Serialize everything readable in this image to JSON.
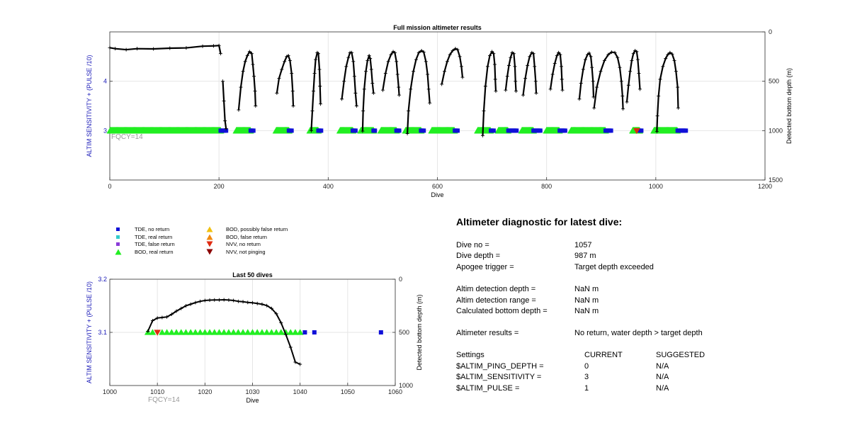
{
  "colors": {
    "trace": "#000000",
    "tde_no_return": "#1010d8",
    "tde_real_return": "#33cccc",
    "tde_false_return": "#8a3cd8",
    "bod_real_return": "#22ee22",
    "bod_possibly_false": "#f0c010",
    "bod_false_return": "#f08a10",
    "nvv_no_return": "#e02a10",
    "nvv_not_pinging": "#8b0000",
    "left_axis_label": "#1a1ab8",
    "fqcy_text": "#9a9a9a",
    "grid": "#e6e6e6"
  },
  "legend": [
    {
      "marker": "square",
      "color_key": "tde_no_return",
      "label": "TDE, no return"
    },
    {
      "marker": "square",
      "color_key": "tde_real_return",
      "label": "TDE, real return"
    },
    {
      "marker": "square",
      "color_key": "tde_false_return",
      "label": "TDE, false return"
    },
    {
      "marker": "triangle-up",
      "color_key": "bod_real_return",
      "label": "BOD, real return"
    },
    {
      "marker": "triangle-up",
      "color_key": "bod_possibly_false",
      "label": "BOD, possibly false return"
    },
    {
      "marker": "triangle-up",
      "color_key": "bod_false_return",
      "label": "BOD, false return"
    },
    {
      "marker": "triangle-down",
      "color_key": "nvv_no_return",
      "label": "NVV, no return"
    },
    {
      "marker": "triangle-down",
      "color_key": "nvv_not_pinging",
      "label": "NVV, not pinging"
    }
  ],
  "chart_data": [
    {
      "type": "scatter",
      "title": "Full mission altimeter results",
      "xlabel": "Dive",
      "ylabel": "ALTIM SENSITIVITY + (PULSE /10)",
      "y2label": "Detected bottom depth (m)",
      "xlim": [
        0,
        1200
      ],
      "ylim": [
        2,
        5
      ],
      "y2lim": [
        1500,
        0
      ],
      "xticks": [
        0,
        200,
        400,
        600,
        800,
        1000,
        1200
      ],
      "yticks": [
        3,
        4
      ],
      "y2ticks": [
        0,
        500,
        1000,
        1500
      ],
      "grid": true,
      "annotation": "FQCY=14",
      "setting_series": {
        "value": 3,
        "bod_real_return_segments": [
          [
            1,
            203
          ],
          [
            232,
            258
          ],
          [
            305,
            328
          ],
          [
            367,
            382
          ],
          [
            422,
            445
          ],
          [
            460,
            483
          ],
          [
            497,
            525
          ],
          [
            542,
            570
          ],
          [
            590,
            632
          ],
          [
            674,
            698
          ],
          [
            712,
            730
          ],
          [
            755,
            776
          ],
          [
            800,
            824
          ],
          [
            845,
            908
          ],
          [
            958,
            971
          ],
          [
            997,
            1040
          ]
        ],
        "tde_no_return_segments": [
          [
            203,
            215
          ],
          [
            258,
            265
          ],
          [
            328,
            333
          ],
          [
            382,
            388
          ],
          [
            445,
            450
          ],
          [
            483,
            487
          ],
          [
            525,
            530
          ],
          [
            570,
            576
          ],
          [
            632,
            638
          ],
          [
            698,
            705
          ],
          [
            730,
            745
          ],
          [
            776,
            790
          ],
          [
            824,
            835
          ],
          [
            908,
            918
          ],
          [
            971,
            975
          ],
          [
            1040,
            1057
          ]
        ],
        "nvv_no_return_dives": [
          965
        ]
      },
      "bottom_depth_segments": [
        [
          [
            0,
            160
          ],
          [
            10,
            170
          ],
          [
            30,
            180
          ],
          [
            50,
            170
          ],
          [
            80,
            172
          ],
          [
            110,
            165
          ],
          [
            140,
            162
          ],
          [
            170,
            145
          ],
          [
            190,
            142
          ],
          [
            200,
            138
          ],
          [
            203,
            220
          ]
        ],
        [
          [
            207,
            500
          ],
          [
            209,
            700
          ],
          [
            211,
            900
          ],
          [
            213,
            980
          ]
        ],
        [
          [
            236,
            790
          ],
          [
            240,
            560
          ],
          [
            244,
            400
          ],
          [
            248,
            300
          ],
          [
            252,
            240
          ],
          [
            256,
            200
          ],
          [
            260,
            220
          ],
          [
            262,
            330
          ],
          [
            264,
            450
          ],
          [
            266,
            600
          ],
          [
            267,
            750
          ]
        ],
        [
          [
            306,
            620
          ],
          [
            310,
            470
          ],
          [
            315,
            380
          ],
          [
            320,
            300
          ],
          [
            324,
            250
          ],
          [
            327,
            240
          ],
          [
            330,
            290
          ],
          [
            333,
            420
          ],
          [
            335,
            600
          ],
          [
            336,
            750
          ]
        ],
        [
          [
            369,
            1000
          ],
          [
            371,
            800
          ],
          [
            373,
            600
          ],
          [
            375,
            420
          ],
          [
            377,
            280
          ],
          [
            380,
            210
          ],
          [
            382,
            220
          ],
          [
            384,
            380
          ],
          [
            385,
            550
          ],
          [
            386,
            730
          ]
        ],
        [
          [
            425,
            680
          ],
          [
            429,
            500
          ],
          [
            433,
            350
          ],
          [
            437,
            260
          ],
          [
            440,
            210
          ],
          [
            443,
            210
          ],
          [
            446,
            300
          ],
          [
            448,
            450
          ],
          [
            450,
            620
          ],
          [
            452,
            750
          ]
        ],
        [
          [
            463,
            1005
          ],
          [
            464,
            800
          ],
          [
            466,
            580
          ],
          [
            469,
            400
          ],
          [
            472,
            290
          ],
          [
            475,
            240
          ],
          [
            477,
            270
          ],
          [
            479,
            380
          ],
          [
            481,
            520
          ],
          [
            483,
            620
          ]
        ],
        [
          [
            500,
            590
          ],
          [
            505,
            420
          ],
          [
            510,
            300
          ],
          [
            515,
            230
          ],
          [
            519,
            200
          ],
          [
            522,
            210
          ],
          [
            525,
            300
          ],
          [
            527,
            430
          ],
          [
            529,
            560
          ],
          [
            530,
            640
          ]
        ],
        [
          [
            545,
            1030
          ],
          [
            547,
            800
          ],
          [
            551,
            580
          ],
          [
            556,
            400
          ],
          [
            561,
            280
          ],
          [
            566,
            210
          ],
          [
            571,
            190
          ],
          [
            575,
            205
          ],
          [
            579,
            300
          ],
          [
            582,
            430
          ],
          [
            584,
            580
          ],
          [
            586,
            720
          ]
        ],
        [
          [
            608,
            530
          ],
          [
            613,
            400
          ],
          [
            618,
            300
          ],
          [
            623,
            230
          ],
          [
            628,
            190
          ],
          [
            633,
            170
          ],
          [
            637,
            180
          ],
          [
            641,
            250
          ],
          [
            644,
            350
          ],
          [
            646,
            460
          ]
        ],
        [
          [
            683,
            1050
          ],
          [
            685,
            800
          ],
          [
            688,
            550
          ],
          [
            692,
            350
          ],
          [
            696,
            240
          ],
          [
            700,
            200
          ],
          [
            703,
            220
          ],
          [
            705,
            330
          ],
          [
            706,
            480
          ],
          [
            707,
            600
          ]
        ],
        [
          [
            725,
            590
          ],
          [
            728,
            450
          ],
          [
            731,
            340
          ],
          [
            734,
            260
          ],
          [
            737,
            210
          ],
          [
            740,
            220
          ],
          [
            742,
            350
          ],
          [
            743,
            500
          ],
          [
            744,
            600
          ]
        ],
        [
          [
            757,
            640
          ],
          [
            761,
            470
          ],
          [
            765,
            340
          ],
          [
            769,
            250
          ],
          [
            773,
            210
          ],
          [
            776,
            220
          ],
          [
            778,
            350
          ],
          [
            780,
            500
          ],
          [
            781,
            620
          ]
        ],
        [
          [
            807,
            580
          ],
          [
            811,
            430
          ],
          [
            815,
            320
          ],
          [
            819,
            240
          ],
          [
            822,
            210
          ],
          [
            825,
            230
          ],
          [
            827,
            350
          ],
          [
            828,
            480
          ],
          [
            829,
            590
          ]
        ],
        [
          [
            860,
            680
          ],
          [
            863,
            520
          ],
          [
            867,
            380
          ],
          [
            871,
            280
          ],
          [
            875,
            230
          ],
          [
            878,
            215
          ],
          [
            881,
            250
          ],
          [
            883,
            360
          ],
          [
            885,
            500
          ],
          [
            886,
            660
          ]
        ],
        [
          [
            887,
            770
          ],
          [
            892,
            560
          ],
          [
            899,
            400
          ],
          [
            906,
            290
          ],
          [
            913,
            230
          ],
          [
            919,
            205
          ],
          [
            925,
            210
          ],
          [
            930,
            260
          ],
          [
            934,
            360
          ],
          [
            937,
            500
          ],
          [
            939,
            650
          ],
          [
            940,
            780
          ]
        ],
        [
          [
            947,
            710
          ],
          [
            950,
            540
          ],
          [
            953,
            400
          ],
          [
            956,
            290
          ],
          [
            959,
            220
          ],
          [
            962,
            190
          ],
          [
            965,
            200
          ],
          [
            967,
            280
          ],
          [
            969,
            420
          ],
          [
            971,
            580
          ]
        ],
        [
          [
            1002,
            1010
          ],
          [
            1003,
            850
          ],
          [
            1005,
            650
          ],
          [
            1008,
            480
          ],
          [
            1013,
            350
          ],
          [
            1018,
            270
          ],
          [
            1022,
            230
          ],
          [
            1026,
            210
          ],
          [
            1030,
            225
          ],
          [
            1034,
            290
          ],
          [
            1037,
            400
          ],
          [
            1040,
            560
          ],
          [
            1041,
            770
          ]
        ]
      ]
    },
    {
      "type": "scatter",
      "title": "Last 50 dives",
      "xlabel": "Dive",
      "ylabel": "ALTIM SENSITIVITY + (PULSE /10)",
      "y2label": "Detected bottom depth (m)",
      "xlim": [
        1000,
        1060
      ],
      "ylim": [
        3,
        3.2
      ],
      "y2lim": [
        1000,
        0
      ],
      "xticks": [
        1000,
        1010,
        1020,
        1030,
        1040,
        1050,
        1060
      ],
      "yticks": [
        3.1,
        3.2
      ],
      "y2ticks": [
        0,
        500,
        1000
      ],
      "grid": true,
      "annotation": "FQCY=14",
      "setting_series": {
        "value": 3.1,
        "bod_real_return_dives": [
          1008,
          1009,
          1011,
          1012,
          1013,
          1014,
          1015,
          1016,
          1017,
          1018,
          1019,
          1020,
          1021,
          1022,
          1023,
          1024,
          1025,
          1026,
          1027,
          1028,
          1029,
          1030,
          1031,
          1032,
          1033,
          1034,
          1035,
          1036,
          1037,
          1038,
          1039,
          1040
        ],
        "nvv_no_return_dives": [
          1010
        ],
        "tde_no_return_dives": [
          1041,
          1043,
          1057
        ]
      },
      "bottom_depth": {
        "x": [
          1008,
          1009,
          1010,
          1011,
          1012,
          1013,
          1014,
          1015,
          1016,
          1017,
          1018,
          1019,
          1020,
          1021,
          1022,
          1023,
          1024,
          1025,
          1026,
          1027,
          1028,
          1029,
          1030,
          1031,
          1032,
          1033,
          1034,
          1035,
          1036,
          1037,
          1038,
          1039,
          1040
        ],
        "y": [
          490,
          390,
          365,
          360,
          355,
          330,
          300,
          275,
          250,
          235,
          220,
          208,
          200,
          197,
          195,
          195,
          193,
          196,
          200,
          208,
          212,
          218,
          222,
          228,
          235,
          248,
          275,
          325,
          410,
          520,
          640,
          780,
          800
        ]
      }
    }
  ],
  "diagnostic": {
    "title": "Altimeter diagnostic for latest dive:",
    "rows": [
      {
        "label": "Dive no =",
        "value": "1057"
      },
      {
        "label": "Dive depth =",
        "value": "987 m"
      },
      {
        "label": "Apogee trigger =",
        "value": "Target depth exceeded"
      },
      {
        "label": "Altim detection depth =",
        "value": "NaN m"
      },
      {
        "label": "Altim detection range =",
        "value": "NaN m"
      },
      {
        "label": "Calculated bottom depth =",
        "value": "NaN m"
      },
      {
        "label": "Altimeter results =",
        "value": "No return, water depth > target depth"
      }
    ],
    "settings_header": {
      "label": "Settings",
      "current": "CURRENT",
      "suggested": "SUGGESTED"
    },
    "settings": [
      {
        "name": "$ALTIM_PING_DEPTH =",
        "current": "0",
        "suggested": "N/A"
      },
      {
        "name": "$ALTIM_SENSITIVITY =",
        "current": "3",
        "suggested": "N/A"
      },
      {
        "name": "$ALTIM_PULSE =",
        "current": "1",
        "suggested": "N/A"
      }
    ]
  }
}
